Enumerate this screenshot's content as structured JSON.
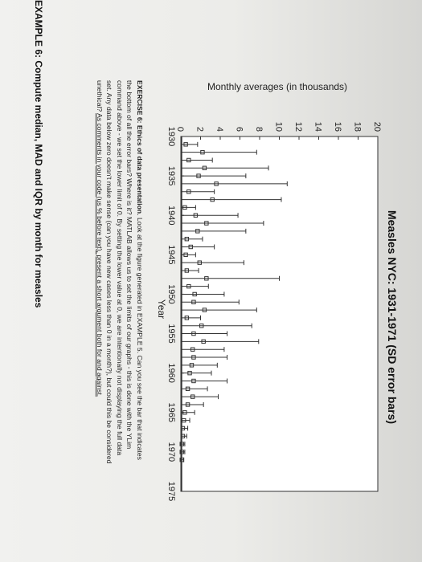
{
  "chart_data": {
    "type": "errorbar",
    "title": "Measles NYC: 1931-1971 (SD error bars)",
    "xlabel": "Year",
    "ylabel": "Monthly averages (in thousands)",
    "xlim": [
      1930,
      1975
    ],
    "ylim": [
      0,
      20
    ],
    "xticks": [
      1930,
      1935,
      1940,
      1945,
      1950,
      1955,
      1960,
      1965,
      1970,
      1975
    ],
    "yticks": [
      0,
      2,
      4,
      6,
      8,
      10,
      12,
      14,
      16,
      18,
      20
    ],
    "grid": false,
    "points": [
      {
        "x": 1931,
        "y": 0.5,
        "err": 1.2
      },
      {
        "x": 1932,
        "y": 2.2,
        "err": 5.5
      },
      {
        "x": 1933,
        "y": 0.8,
        "err": 2.4
      },
      {
        "x": 1934,
        "y": 2.4,
        "err": 6.5
      },
      {
        "x": 1935,
        "y": 1.8,
        "err": 4.8
      },
      {
        "x": 1936,
        "y": 3.6,
        "err": 7.2
      },
      {
        "x": 1937,
        "y": 0.8,
        "err": 2.6
      },
      {
        "x": 1938,
        "y": 3.2,
        "err": 7.0
      },
      {
        "x": 1939,
        "y": 0.4,
        "err": 1.1
      },
      {
        "x": 1940,
        "y": 1.5,
        "err": 4.3
      },
      {
        "x": 1941,
        "y": 2.6,
        "err": 5.8
      },
      {
        "x": 1942,
        "y": 1.7,
        "err": 4.9
      },
      {
        "x": 1943,
        "y": 0.6,
        "err": 1.6
      },
      {
        "x": 1944,
        "y": 1.0,
        "err": 2.4
      },
      {
        "x": 1945,
        "y": 0.5,
        "err": 1.0
      },
      {
        "x": 1946,
        "y": 1.9,
        "err": 4.5
      },
      {
        "x": 1947,
        "y": 0.6,
        "err": 1.2
      },
      {
        "x": 1948,
        "y": 2.6,
        "err": 7.4
      },
      {
        "x": 1949,
        "y": 0.8,
        "err": 2.0
      },
      {
        "x": 1950,
        "y": 1.4,
        "err": 3.0
      },
      {
        "x": 1951,
        "y": 1.3,
        "err": 4.6
      },
      {
        "x": 1952,
        "y": 2.4,
        "err": 5.3
      },
      {
        "x": 1953,
        "y": 0.6,
        "err": 1.4
      },
      {
        "x": 1954,
        "y": 2.1,
        "err": 5.1
      },
      {
        "x": 1955,
        "y": 1.3,
        "err": 3.4
      },
      {
        "x": 1956,
        "y": 2.3,
        "err": 5.6
      },
      {
        "x": 1957,
        "y": 1.2,
        "err": 3.2
      },
      {
        "x": 1958,
        "y": 1.3,
        "err": 3.4
      },
      {
        "x": 1959,
        "y": 1.1,
        "err": 2.6
      },
      {
        "x": 1960,
        "y": 0.9,
        "err": 2.2
      },
      {
        "x": 1961,
        "y": 1.3,
        "err": 3.4
      },
      {
        "x": 1962,
        "y": 0.7,
        "err": 2.0
      },
      {
        "x": 1963,
        "y": 1.2,
        "err": 2.6
      },
      {
        "x": 1964,
        "y": 0.7,
        "err": 1.6
      },
      {
        "x": 1965,
        "y": 0.4,
        "err": 1.0
      },
      {
        "x": 1966,
        "y": 0.3,
        "err": 0.6
      },
      {
        "x": 1967,
        "y": 0.2,
        "err": 0.5
      },
      {
        "x": 1968,
        "y": 0.2,
        "err": 0.4
      },
      {
        "x": 1969,
        "y": 0.1,
        "err": 0.3
      },
      {
        "x": 1970,
        "y": 0.1,
        "err": 0.3
      },
      {
        "x": 1971,
        "y": 0.1,
        "err": 0.2
      }
    ]
  },
  "exercise": {
    "title": "EXERCISE 6: Ethics of data presentation",
    "body": ". Look at the figure generated in EXAMPLE 5. Can you see the bar that indicates the bottom of all the error bars? Where is it? MATLAB allows us to set the limits of our graphs - this is done with the YLim command above - we set the lower limit of 0. By setting the lower value at 0, we are intentionally not displaying the full data set. Any data below zero doesn't make sense (can you have new cases less than 0 in a month?), but could this be considered unethical? ",
    "instruction": "As comments in your code (us % before text), present a short argument both for and against."
  },
  "next_heading": "EXAMPLE 6: Compute median, MAD and IQR by month for measles"
}
